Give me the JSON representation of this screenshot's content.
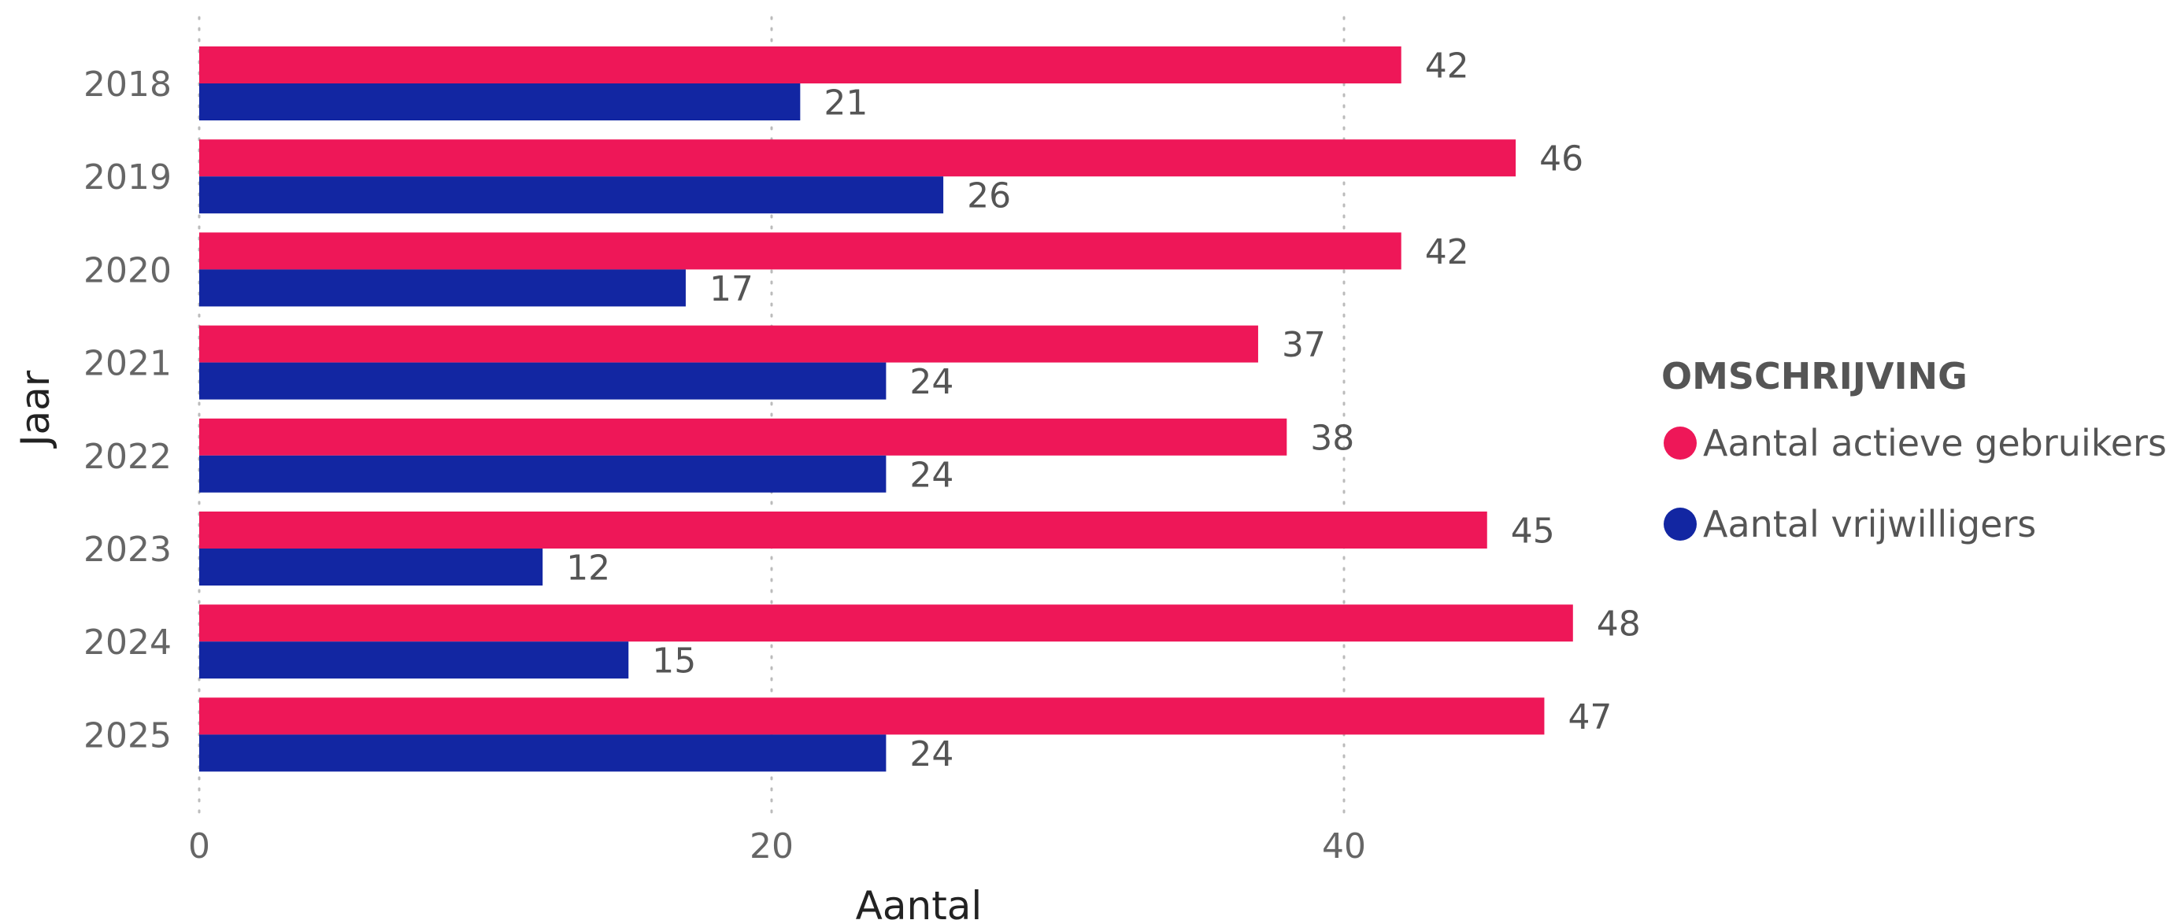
{
  "chart_data": {
    "type": "bar",
    "orientation": "horizontal",
    "categories": [
      "2018",
      "2019",
      "2020",
      "2021",
      "2022",
      "2023",
      "2024",
      "2025"
    ],
    "series": [
      {
        "name": "Aantal actieve gebruikers",
        "color": "#EE1758",
        "values": [
          42,
          46,
          42,
          37,
          38,
          45,
          48,
          47
        ]
      },
      {
        "name": "Aantal vrijwilligers",
        "color": "#1226A2",
        "values": [
          21,
          26,
          17,
          24,
          24,
          12,
          15,
          24
        ]
      }
    ],
    "xlabel": "Aantal",
    "ylabel": "Jaar",
    "xlim": [
      0,
      50
    ],
    "x_ticks": [
      "0",
      "20",
      "40"
    ],
    "grid": "vertical dotted",
    "data_labels": true,
    "legend": {
      "title": "OMSCHRIJVING",
      "position": "right"
    }
  }
}
